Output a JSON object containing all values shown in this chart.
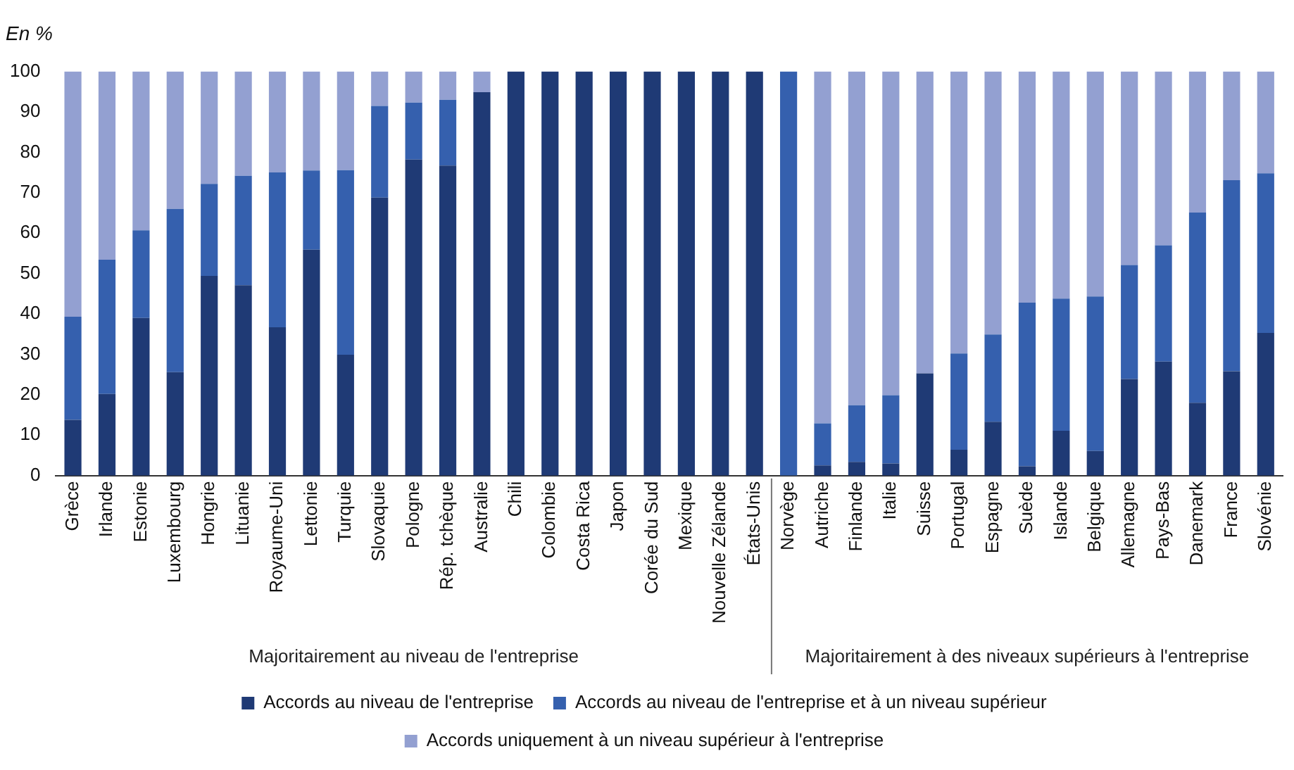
{
  "chart_data": {
    "type": "bar",
    "stacked": true,
    "title": "En %",
    "categories": [
      "Grèce",
      "Irlande",
      "Estonie",
      "Luxembourg",
      "Hongrie",
      "Lituanie",
      "Royaume-Uni",
      "Lettonie",
      "Turquie",
      "Slovaquie",
      "Pologne",
      "Rép. tchèque",
      "Australie",
      "Chili",
      "Colombie",
      "Costa Rica",
      "Japon",
      "Corée du Sud",
      "Mexique",
      "Nouvelle Zélande",
      "États-Unis",
      "Norvège",
      "Autriche",
      "Finlande",
      "Italie",
      "Suisse",
      "Portugal",
      "Espagne",
      "Suède",
      "Islande",
      "Belgique",
      "Allemagne",
      "Pays-Bas",
      "Danemark",
      "France",
      "Slovénie"
    ],
    "series": [
      {
        "name": "Accords au niveau de l'entreprise",
        "color": "#1f3a75",
        "values": [
          13.8,
          20.2,
          39.0,
          25.6,
          49.4,
          47.1,
          36.7,
          55.9,
          29.9,
          68.8,
          78.2,
          76.7,
          94.9,
          100,
          100,
          100,
          100,
          100,
          100,
          100,
          100,
          0,
          2.5,
          3.4,
          3.0,
          25.3,
          6.4,
          13.3,
          2.3,
          11.1,
          6.1,
          23.9,
          28.2,
          18.0,
          25.8,
          35.3
        ]
      },
      {
        "name": "Accords au niveau de l'entreprise et à un niveau supérieur",
        "color": "#3560ae",
        "values": [
          25.5,
          33.2,
          21.7,
          40.4,
          22.8,
          27.1,
          38.3,
          19.6,
          45.7,
          22.7,
          14.1,
          16.3,
          0,
          0,
          0,
          0,
          0,
          0,
          0,
          0,
          0,
          100,
          10.4,
          14.0,
          16.9,
          0,
          23.8,
          21.6,
          40.5,
          32.7,
          38.2,
          28.2,
          28.8,
          47.1,
          47.3,
          39.5
        ]
      },
      {
        "name": "Accords uniquement à un niveau supérieur à l'entreprise",
        "color": "#93a0d1",
        "values": [
          60.7,
          46.6,
          39.3,
          34.0,
          27.8,
          25.8,
          25.0,
          24.5,
          24.4,
          8.5,
          7.7,
          7.0,
          5.1,
          0,
          0,
          0,
          0,
          0,
          0,
          0,
          0,
          0,
          87.1,
          82.6,
          80.1,
          74.7,
          69.8,
          65.1,
          57.2,
          56.2,
          55.7,
          47.9,
          43.0,
          34.9,
          26.9,
          25.2
        ]
      }
    ],
    "ylim": [
      0,
      100
    ],
    "yticks": [
      0,
      10,
      20,
      30,
      40,
      50,
      60,
      70,
      80,
      90,
      100
    ],
    "grid": false,
    "legend": "bottom",
    "annotations": [
      "Majoritairement au niveau de l'entreprise",
      "Majoritairement à des niveaux supérieurs à l'entreprise"
    ]
  }
}
